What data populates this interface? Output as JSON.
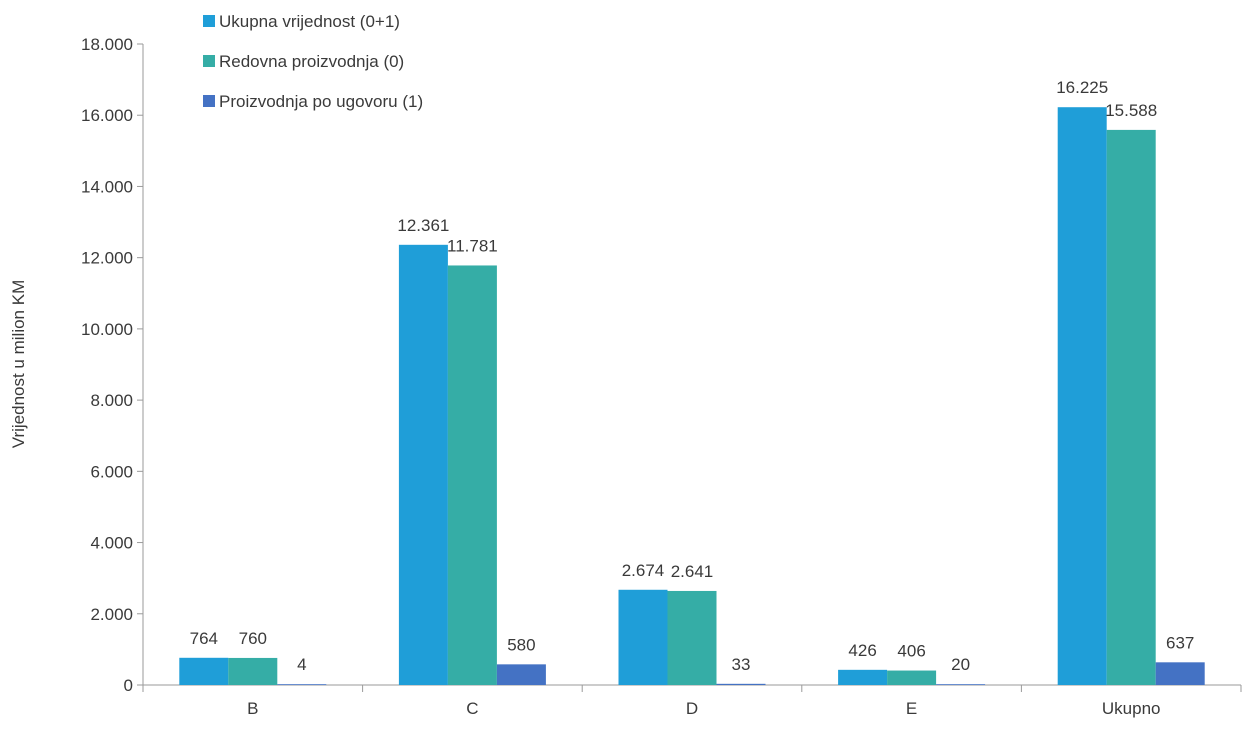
{
  "chart_data": {
    "type": "bar",
    "ylabel": "Vrijednost u milion KM",
    "xlabel": "",
    "ylim": [
      0,
      18000
    ],
    "y_ticks": [
      0,
      2000,
      4000,
      6000,
      8000,
      10000,
      12000,
      14000,
      16000,
      18000
    ],
    "y_tick_labels": [
      "0",
      "2.000",
      "4.000",
      "6.000",
      "8.000",
      "10.000",
      "12.000",
      "14.000",
      "16.000",
      "18.000"
    ],
    "categories": [
      "B",
      "C",
      "D",
      "E",
      "Ukupno"
    ],
    "legend_position": "top-left",
    "grid": false,
    "series": [
      {
        "name": "Ukupna vrijednost (0+1)",
        "color": "#1f9ed8",
        "values": [
          764,
          12361,
          2674,
          426,
          16225
        ],
        "labels": [
          "764",
          "12.361",
          "2.674",
          "426",
          "16.225"
        ]
      },
      {
        "name": "Redovna proizvodnja (0)",
        "color": "#35ada6",
        "values": [
          760,
          11781,
          2641,
          406,
          15588
        ],
        "labels": [
          "760",
          "11.781",
          "2.641",
          "406",
          "15.588"
        ]
      },
      {
        "name": "Proizvodnja po ugovoru (1)",
        "color": "#4472c4",
        "values": [
          4,
          580,
          33,
          20,
          637
        ],
        "labels": [
          "4",
          "580",
          "33",
          "20",
          "637"
        ]
      }
    ]
  }
}
